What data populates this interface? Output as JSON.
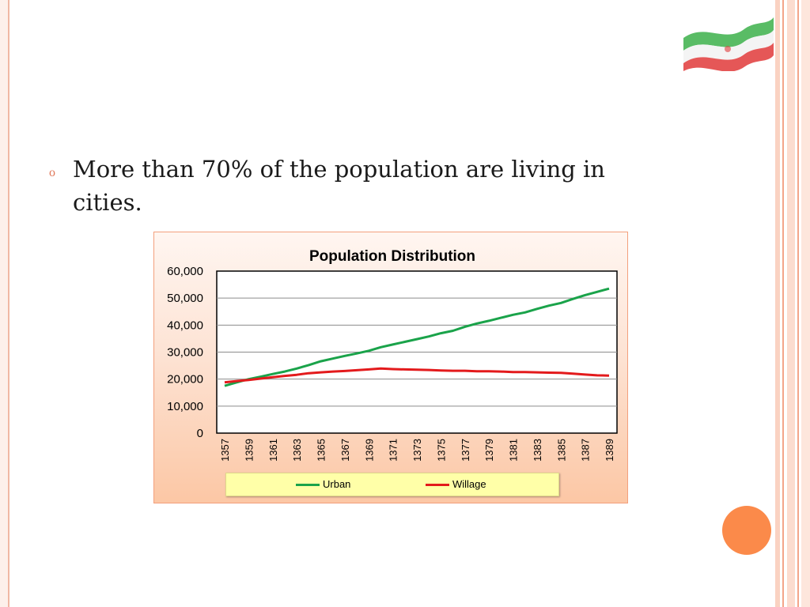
{
  "slide": {
    "bullet_symbol": "o",
    "text": "More than 70% of the population are living in cities."
  },
  "colors": {
    "urban": "#1aa34a",
    "willage": "#e31a1c",
    "accent": "#fb8a4a"
  },
  "chart_data": {
    "type": "line",
    "title": "Population Distribution",
    "xlabel": "",
    "ylabel": "",
    "x": [
      1357,
      1358,
      1359,
      1360,
      1361,
      1362,
      1363,
      1364,
      1365,
      1366,
      1367,
      1368,
      1369,
      1370,
      1371,
      1372,
      1373,
      1374,
      1375,
      1376,
      1377,
      1378,
      1379,
      1380,
      1381,
      1382,
      1383,
      1384,
      1385,
      1386,
      1387,
      1388,
      1389
    ],
    "x_tick_labels": [
      "1357",
      "1359",
      "1361",
      "1363",
      "1365",
      "1367",
      "1369",
      "1371",
      "1373",
      "1375",
      "1377",
      "1379",
      "1381",
      "1383",
      "1385",
      "1387",
      "1389"
    ],
    "ylim": [
      0,
      60000
    ],
    "y_ticks": [
      0,
      10000,
      20000,
      30000,
      40000,
      50000,
      60000
    ],
    "y_tick_labels": [
      "0",
      "10,000",
      "20,000",
      "30,000",
      "40,000",
      "50,000",
      "60,000"
    ],
    "grid": true,
    "legend_position": "bottom",
    "series": [
      {
        "name": "Urban",
        "values": [
          17500,
          18800,
          20000,
          20900,
          21900,
          22800,
          23900,
          25200,
          26600,
          27600,
          28600,
          29500,
          30500,
          31800,
          32800,
          33800,
          34800,
          35800,
          37000,
          37900,
          39400,
          40600,
          41600,
          42700,
          43800,
          44700,
          46000,
          47200,
          48200,
          49700,
          51100,
          52300,
          53500
        ]
      },
      {
        "name": "Willage",
        "values": [
          18800,
          19300,
          19700,
          20200,
          20700,
          21200,
          21600,
          22200,
          22500,
          22800,
          23000,
          23300,
          23600,
          23900,
          23700,
          23600,
          23500,
          23400,
          23200,
          23100,
          23100,
          22900,
          22900,
          22800,
          22600,
          22600,
          22500,
          22400,
          22300,
          22000,
          21700,
          21400,
          21300
        ]
      }
    ]
  }
}
